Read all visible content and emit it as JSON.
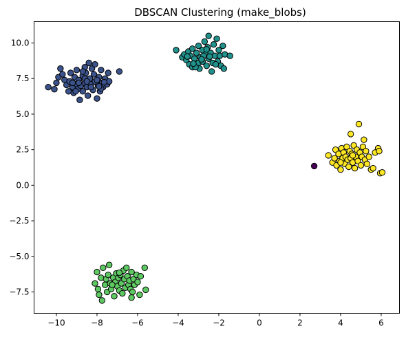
{
  "chart_data": {
    "type": "scatter",
    "title": "DBSCAN Clustering (make_blobs)",
    "xlabel": "",
    "ylabel": "",
    "xlim": [
      -11.1,
      6.9
    ],
    "ylim": [
      -9.0,
      11.5
    ],
    "xticks": [
      -10,
      -8,
      -6,
      -4,
      -2,
      0,
      2,
      4,
      6
    ],
    "yticks": [
      -7.5,
      -5.0,
      -2.5,
      0.0,
      2.5,
      5.0,
      7.5,
      10.0
    ],
    "xtick_labels": [
      "−10",
      "−8",
      "−6",
      "−4",
      "−2",
      "0",
      "2",
      "4",
      "6"
    ],
    "ytick_labels": [
      "−7.5",
      "−5.0",
      "−2.5",
      "0.0",
      "2.5",
      "5.0",
      "7.5",
      "10.0"
    ],
    "grid": false,
    "colormap": "viridis",
    "series": [
      {
        "color": "#440154",
        "points": [
          [
            2.7,
            1.35
          ]
        ]
      },
      {
        "color": "#3b528b",
        "points": [
          [
            -10.4,
            6.9
          ],
          [
            -10.1,
            6.75
          ],
          [
            -10.0,
            7.2
          ],
          [
            -9.9,
            7.6
          ],
          [
            -9.8,
            8.2
          ],
          [
            -9.7,
            7.8
          ],
          [
            -9.6,
            7.4
          ],
          [
            -9.5,
            7.05
          ],
          [
            -9.4,
            6.6
          ],
          [
            -9.35,
            7.3
          ],
          [
            -9.3,
            7.9
          ],
          [
            -9.2,
            6.9
          ],
          [
            -9.15,
            6.5
          ],
          [
            -9.1,
            7.6
          ],
          [
            -9.0,
            7.1
          ],
          [
            -9.0,
            8.1
          ],
          [
            -8.95,
            6.75
          ],
          [
            -8.9,
            7.4
          ],
          [
            -8.85,
            6.0
          ],
          [
            -8.8,
            7.0
          ],
          [
            -8.7,
            7.7
          ],
          [
            -8.7,
            6.6
          ],
          [
            -8.6,
            7.2
          ],
          [
            -8.6,
            8.3
          ],
          [
            -8.55,
            7.9
          ],
          [
            -8.5,
            6.9
          ],
          [
            -8.45,
            6.3
          ],
          [
            -8.4,
            8.6
          ],
          [
            -8.35,
            7.5
          ],
          [
            -8.3,
            7.1
          ],
          [
            -8.25,
            8.2
          ],
          [
            -8.2,
            6.7
          ],
          [
            -8.15,
            7.8
          ],
          [
            -8.1,
            7.3
          ],
          [
            -8.1,
            8.5
          ],
          [
            -8.0,
            6.1
          ],
          [
            -7.95,
            7.0
          ],
          [
            -7.9,
            7.6
          ],
          [
            -7.85,
            6.6
          ],
          [
            -7.8,
            8.1
          ],
          [
            -7.75,
            7.2
          ],
          [
            -7.7,
            6.9
          ],
          [
            -7.6,
            7.5
          ],
          [
            -7.5,
            7.1
          ],
          [
            -7.45,
            7.9
          ],
          [
            -7.4,
            7.3
          ],
          [
            -7.8,
            6.8
          ],
          [
            -8.6,
            7.5
          ],
          [
            -8.9,
            7.2
          ],
          [
            -9.05,
            6.6
          ],
          [
            -8.3,
            6.9
          ],
          [
            -8.0,
            7.4
          ],
          [
            -7.9,
            6.95
          ],
          [
            -8.7,
            8.0
          ],
          [
            -6.9,
            8.0
          ],
          [
            -8.5,
            7.3
          ],
          [
            -9.2,
            7.2
          ],
          [
            -7.65,
            7.25
          ]
        ]
      },
      {
        "color": "#21918c",
        "points": [
          [
            -4.1,
            9.5
          ],
          [
            -3.8,
            9.0
          ],
          [
            -3.7,
            9.2
          ],
          [
            -3.6,
            8.8
          ],
          [
            -3.5,
            9.4
          ],
          [
            -3.45,
            8.5
          ],
          [
            -3.4,
            9.1
          ],
          [
            -3.3,
            8.3
          ],
          [
            -3.3,
            9.6
          ],
          [
            -3.2,
            8.9
          ],
          [
            -3.1,
            9.3
          ],
          [
            -3.0,
            8.6
          ],
          [
            -3.0,
            9.8
          ],
          [
            -2.95,
            8.2
          ],
          [
            -2.9,
            9.0
          ],
          [
            -2.8,
            9.5
          ],
          [
            -2.8,
            8.7
          ],
          [
            -2.7,
            10.1
          ],
          [
            -2.65,
            9.2
          ],
          [
            -2.6,
            8.4
          ],
          [
            -2.55,
            9.7
          ],
          [
            -2.5,
            8.9
          ],
          [
            -2.5,
            10.5
          ],
          [
            -2.4,
            9.3
          ],
          [
            -2.35,
            8.0
          ],
          [
            -2.3,
            8.6
          ],
          [
            -2.25,
            9.9
          ],
          [
            -2.2,
            9.1
          ],
          [
            -2.1,
            10.3
          ],
          [
            -2.05,
            8.7
          ],
          [
            -2.0,
            9.5
          ],
          [
            -1.95,
            9.1
          ],
          [
            -1.9,
            8.4
          ],
          [
            -1.8,
            9.8
          ],
          [
            -1.75,
            8.2
          ],
          [
            -1.7,
            9.2
          ],
          [
            -1.45,
            9.1
          ],
          [
            -3.15,
            8.3
          ],
          [
            -2.75,
            9.1
          ],
          [
            -2.45,
            9.05
          ],
          [
            -3.55,
            9.05
          ],
          [
            -2.15,
            8.5
          ],
          [
            -2.85,
            8.85
          ],
          [
            -3.25,
            8.55
          ],
          [
            -2.6,
            9.55
          ]
        ]
      },
      {
        "color": "#5ec962",
        "points": [
          [
            -8.1,
            -6.9
          ],
          [
            -8.0,
            -6.1
          ],
          [
            -7.95,
            -7.3
          ],
          [
            -7.9,
            -7.7
          ],
          [
            -7.8,
            -6.5
          ],
          [
            -7.75,
            -8.1
          ],
          [
            -7.7,
            -5.8
          ],
          [
            -7.6,
            -7.0
          ],
          [
            -7.55,
            -6.6
          ],
          [
            -7.5,
            -7.5
          ],
          [
            -7.45,
            -6.3
          ],
          [
            -7.4,
            -5.6
          ],
          [
            -7.35,
            -6.9
          ],
          [
            -7.3,
            -7.3
          ],
          [
            -7.2,
            -6.5
          ],
          [
            -7.15,
            -7.8
          ],
          [
            -7.1,
            -6.8
          ],
          [
            -7.05,
            -6.2
          ],
          [
            -7.0,
            -7.1
          ],
          [
            -6.95,
            -6.5
          ],
          [
            -6.9,
            -7.4
          ],
          [
            -6.85,
            -6.3
          ],
          [
            -6.8,
            -6.9
          ],
          [
            -6.75,
            -7.6
          ],
          [
            -6.7,
            -6.0
          ],
          [
            -6.65,
            -6.6
          ],
          [
            -6.6,
            -7.2
          ],
          [
            -6.55,
            -5.8
          ],
          [
            -6.5,
            -6.4
          ],
          [
            -6.45,
            -7.0
          ],
          [
            -6.4,
            -6.7
          ],
          [
            -6.35,
            -7.3
          ],
          [
            -6.3,
            -6.1
          ],
          [
            -6.25,
            -7.5
          ],
          [
            -6.2,
            -6.6
          ],
          [
            -6.15,
            -7.0
          ],
          [
            -6.05,
            -6.3
          ],
          [
            -6.0,
            -6.8
          ],
          [
            -5.9,
            -7.7
          ],
          [
            -5.85,
            -6.4
          ],
          [
            -5.65,
            -5.8
          ],
          [
            -5.6,
            -7.35
          ],
          [
            -6.3,
            -7.9
          ],
          [
            -6.9,
            -6.15
          ],
          [
            -7.25,
            -7.0
          ]
        ]
      },
      {
        "color": "#fde725",
        "points": [
          [
            3.4,
            2.1
          ],
          [
            3.6,
            1.6
          ],
          [
            3.7,
            1.9
          ],
          [
            3.75,
            2.5
          ],
          [
            3.8,
            1.4
          ],
          [
            3.9,
            2.2
          ],
          [
            3.95,
            1.7
          ],
          [
            4.0,
            1.1
          ],
          [
            4.05,
            2.6
          ],
          [
            4.1,
            1.9
          ],
          [
            4.15,
            2.3
          ],
          [
            4.2,
            1.5
          ],
          [
            4.25,
            2.0
          ],
          [
            4.3,
            2.7
          ],
          [
            4.35,
            1.8
          ],
          [
            4.4,
            1.3
          ],
          [
            4.45,
            2.4
          ],
          [
            4.5,
            3.6
          ],
          [
            4.5,
            1.9
          ],
          [
            4.55,
            2.2
          ],
          [
            4.6,
            1.6
          ],
          [
            4.65,
            2.8
          ],
          [
            4.7,
            1.2
          ],
          [
            4.75,
            2.0
          ],
          [
            4.8,
            2.5
          ],
          [
            4.85,
            1.7
          ],
          [
            4.9,
            4.3
          ],
          [
            4.95,
            2.3
          ],
          [
            5.0,
            1.4
          ],
          [
            5.05,
            2.0
          ],
          [
            5.1,
            2.7
          ],
          [
            5.15,
            3.2
          ],
          [
            5.2,
            1.8
          ],
          [
            5.25,
            2.4
          ],
          [
            5.3,
            1.5
          ],
          [
            5.4,
            2.0
          ],
          [
            5.5,
            1.1
          ],
          [
            5.6,
            1.2
          ],
          [
            5.7,
            2.3
          ],
          [
            5.85,
            2.6
          ],
          [
            5.9,
            2.4
          ],
          [
            5.95,
            0.85
          ],
          [
            6.05,
            0.9
          ],
          [
            4.0,
            1.6
          ],
          [
            4.6,
            2.1
          ]
        ]
      }
    ]
  }
}
